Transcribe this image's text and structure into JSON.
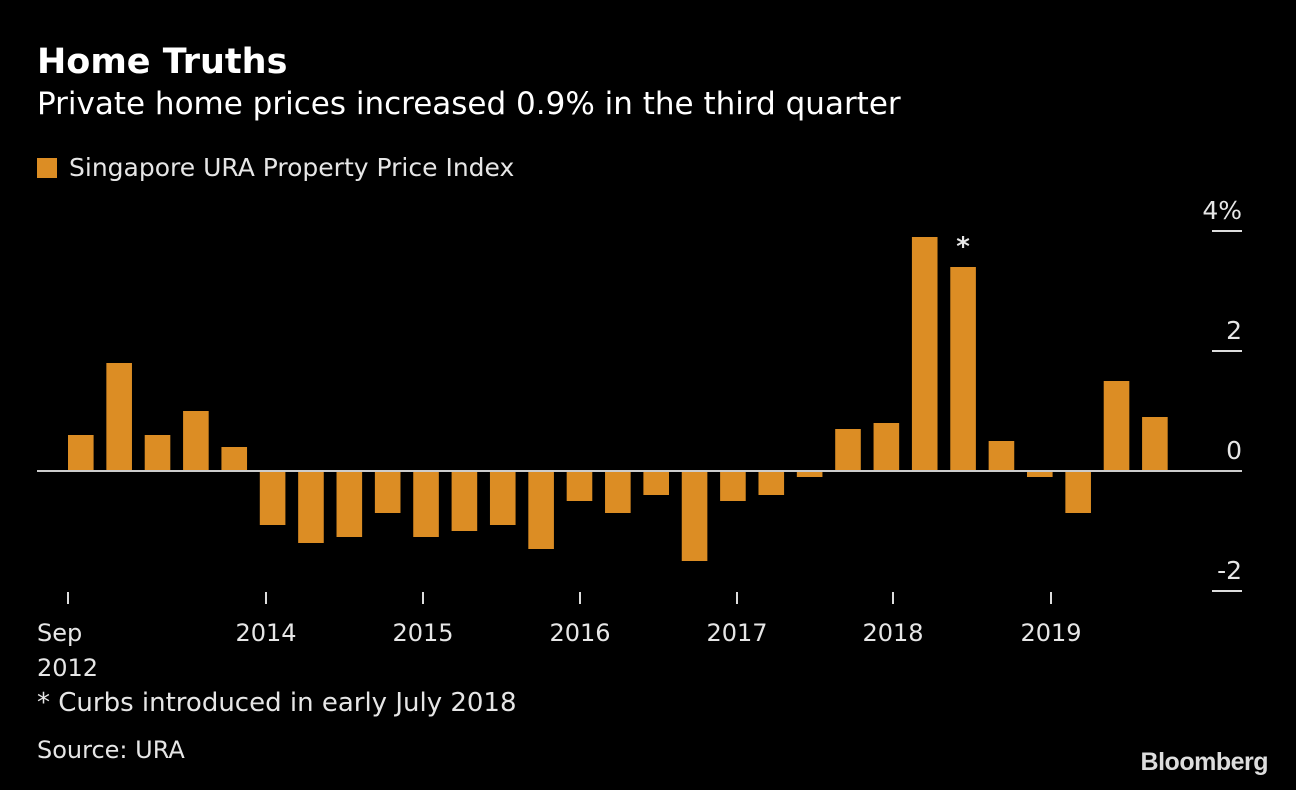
{
  "chart_data": {
    "type": "bar",
    "title": "Home Truths",
    "subtitle": "Private home prices increased 0.9% in the third quarter",
    "legend": [
      {
        "name": "Singapore URA Property Price Index",
        "color": "#dc8d24"
      }
    ],
    "legend_placement": "top-left",
    "categories": [
      "Q3 2012",
      "Q4 2012",
      "Q1 2013",
      "Q2 2013",
      "Q3 2013",
      "Q4 2013",
      "Q1 2014",
      "Q2 2014",
      "Q3 2014",
      "Q4 2014",
      "Q1 2015",
      "Q2 2015",
      "Q3 2015",
      "Q4 2015",
      "Q1 2016",
      "Q2 2016",
      "Q3 2016",
      "Q4 2016",
      "Q1 2017",
      "Q2 2017",
      "Q3 2017",
      "Q4 2017",
      "Q1 2018",
      "Q2 2018",
      "Q3 2018",
      "Q4 2018",
      "Q1 2019",
      "Q2 2019",
      "Q3 2019"
    ],
    "values": [
      0.6,
      1.8,
      0.6,
      1.0,
      0.4,
      -0.9,
      -1.2,
      -1.1,
      -0.7,
      -1.1,
      -1.0,
      -0.9,
      -1.3,
      -0.5,
      -0.7,
      -0.4,
      -1.5,
      -0.5,
      -0.4,
      -0.1,
      0.7,
      0.8,
      3.9,
      3.4,
      0.5,
      -0.1,
      -0.7,
      1.5,
      0.9
    ],
    "ylim": [
      -2,
      4
    ],
    "y_ticks": [
      {
        "value": 4,
        "label": "4%"
      },
      {
        "value": 2,
        "label": "2"
      },
      {
        "value": 0,
        "label": "0"
      },
      {
        "value": -2,
        "label": "-2"
      }
    ],
    "y_axis_side": "right",
    "x_ticks": [
      {
        "label": "Sep",
        "label2": "2012"
      },
      {
        "label": "2014"
      },
      {
        "label": "2015"
      },
      {
        "label": "2016"
      },
      {
        "label": "2017"
      },
      {
        "label": "2018"
      },
      {
        "label": "2019"
      }
    ],
    "annotation": {
      "category": "Q2 2018",
      "mark": "*"
    },
    "grid": false,
    "bar_color": "#dc8d24"
  },
  "footnote": "* Curbs introduced in early July 2018",
  "source": "Source: URA",
  "logo": "Bloomberg"
}
